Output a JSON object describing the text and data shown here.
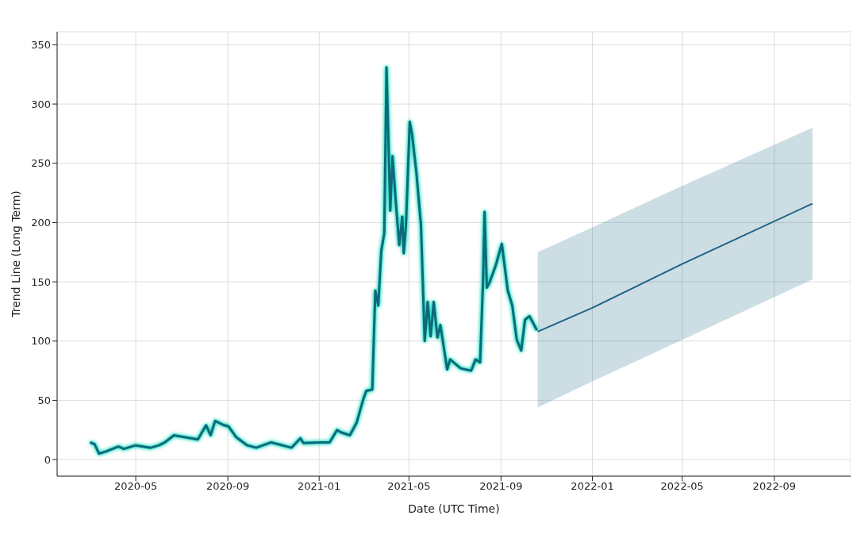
{
  "chart_data": {
    "type": "line",
    "xlabel": "Date (UTC Time)",
    "ylabel": "Trend Line (Long Term)",
    "grid": true,
    "xlim": [
      "2020-01-17",
      "2022-12-12"
    ],
    "xticks": [
      {
        "value": "2020-05-01",
        "label": "2020-05"
      },
      {
        "value": "2020-09-01",
        "label": "2020-09"
      },
      {
        "value": "2021-01-01",
        "label": "2021-01"
      },
      {
        "value": "2021-05-01",
        "label": "2021-05"
      },
      {
        "value": "2021-09-01",
        "label": "2021-09"
      },
      {
        "value": "2022-01-01",
        "label": "2022-01"
      },
      {
        "value": "2022-05-01",
        "label": "2022-05"
      },
      {
        "value": "2022-09-01",
        "label": "2022-09"
      }
    ],
    "ylim": [
      -14,
      361
    ],
    "yticks": [
      0,
      50,
      100,
      150,
      200,
      250,
      300,
      350
    ],
    "series": [
      {
        "color": "#0d6a7a",
        "x": [
          "2020-03-01",
          "2020-03-07",
          "2020-03-13",
          "2020-03-23",
          "2020-04-08",
          "2020-04-15",
          "2020-05-01",
          "2020-05-21",
          "2020-06-01",
          "2020-06-09",
          "2020-06-21",
          "2020-07-23",
          "2020-08-03",
          "2020-08-09",
          "2020-08-15",
          "2020-08-27",
          "2020-09-02",
          "2020-09-12",
          "2020-09-27",
          "2020-10-09",
          "2020-10-29",
          "2020-11-25",
          "2020-12-07",
          "2020-12-11",
          "2021-01-03",
          "2021-01-15",
          "2021-01-25",
          "2021-01-30",
          "2021-02-11",
          "2021-02-20",
          "2021-03-01",
          "2021-03-05",
          "2021-03-13",
          "2021-03-17",
          "2021-03-21",
          "2021-03-25",
          "2021-03-29",
          "2021-04-01",
          "2021-04-06",
          "2021-04-09",
          "2021-04-14",
          "2021-04-18",
          "2021-04-22",
          "2021-04-24",
          "2021-04-27",
          "2021-05-02",
          "2021-05-05",
          "2021-05-11",
          "2021-05-17",
          "2021-05-22",
          "2021-05-26",
          "2021-05-30",
          "2021-06-03",
          "2021-06-08",
          "2021-06-12",
          "2021-06-21",
          "2021-06-25",
          "2021-07-09",
          "2021-07-23",
          "2021-07-29",
          "2021-08-04",
          "2021-08-08",
          "2021-08-10",
          "2021-08-13",
          "2021-08-17",
          "2021-08-25",
          "2021-09-02",
          "2021-09-10",
          "2021-09-16",
          "2021-09-22",
          "2021-09-28",
          "2021-10-03",
          "2021-10-09",
          "2021-10-19"
        ],
        "values": [
          14.5,
          13,
          5,
          7,
          11,
          9,
          12,
          10,
          12,
          14.5,
          20.5,
          17,
          29,
          20.5,
          32.6,
          29,
          28,
          19,
          12,
          10,
          14.5,
          10,
          18,
          14,
          14.5,
          14.5,
          25,
          23,
          20.5,
          31,
          51,
          58,
          59,
          142.5,
          130,
          176,
          191,
          331,
          210,
          256,
          212.5,
          181,
          205,
          174,
          198,
          285,
          275,
          241.5,
          198,
          100,
          133,
          104,
          133,
          103,
          113.5,
          76,
          84.5,
          77,
          75,
          84.5,
          82,
          152,
          209,
          145,
          150,
          164,
          182,
          142.5,
          130,
          101,
          92,
          118,
          121,
          109
        ]
      },
      {
        "color": "#1b6385",
        "x": [
          "2021-10-20",
          "2022-01-01",
          "2022-05-01",
          "2022-10-22"
        ],
        "values": [
          108,
          128,
          165,
          216
        ],
        "lower": [
          44,
          66,
          101,
          152
        ],
        "upper": [
          175,
          196,
          231,
          280
        ]
      }
    ]
  }
}
